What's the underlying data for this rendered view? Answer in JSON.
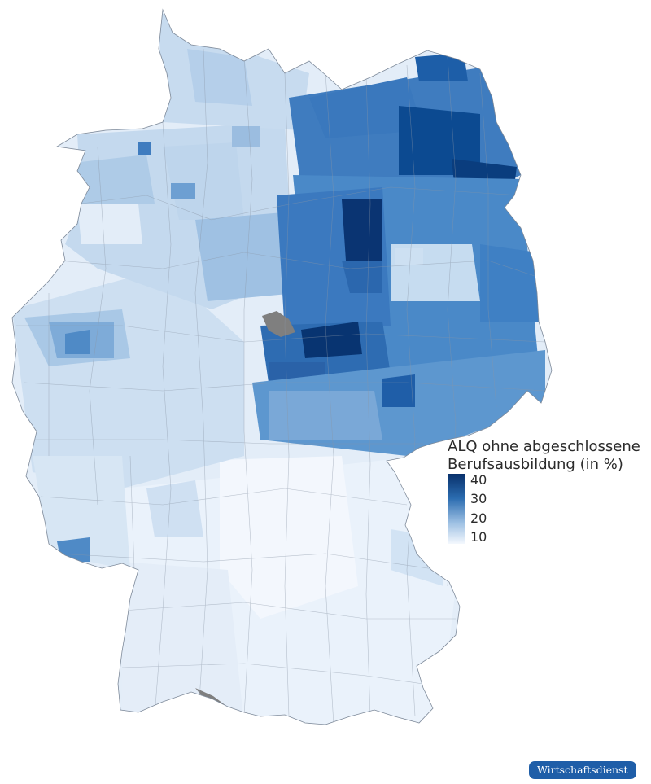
{
  "legend": {
    "title_line1": "ALQ ohne abgeschlossene",
    "title_line2": "Berufsausbildung (in %)",
    "ticks": [
      {
        "label": "40",
        "value": 40
      },
      {
        "label": "30",
        "value": 30
      },
      {
        "label": "20",
        "value": 20
      },
      {
        "label": "10",
        "value": 10
      }
    ],
    "color_low": "#f4f8fd",
    "color_high": "#08306b"
  },
  "publisher_badge": "Wirtschaftsdienst",
  "colors": {
    "no_data": "#7f7f7f",
    "border": "#8a96a6",
    "badge": "#1f5ea8"
  }
}
